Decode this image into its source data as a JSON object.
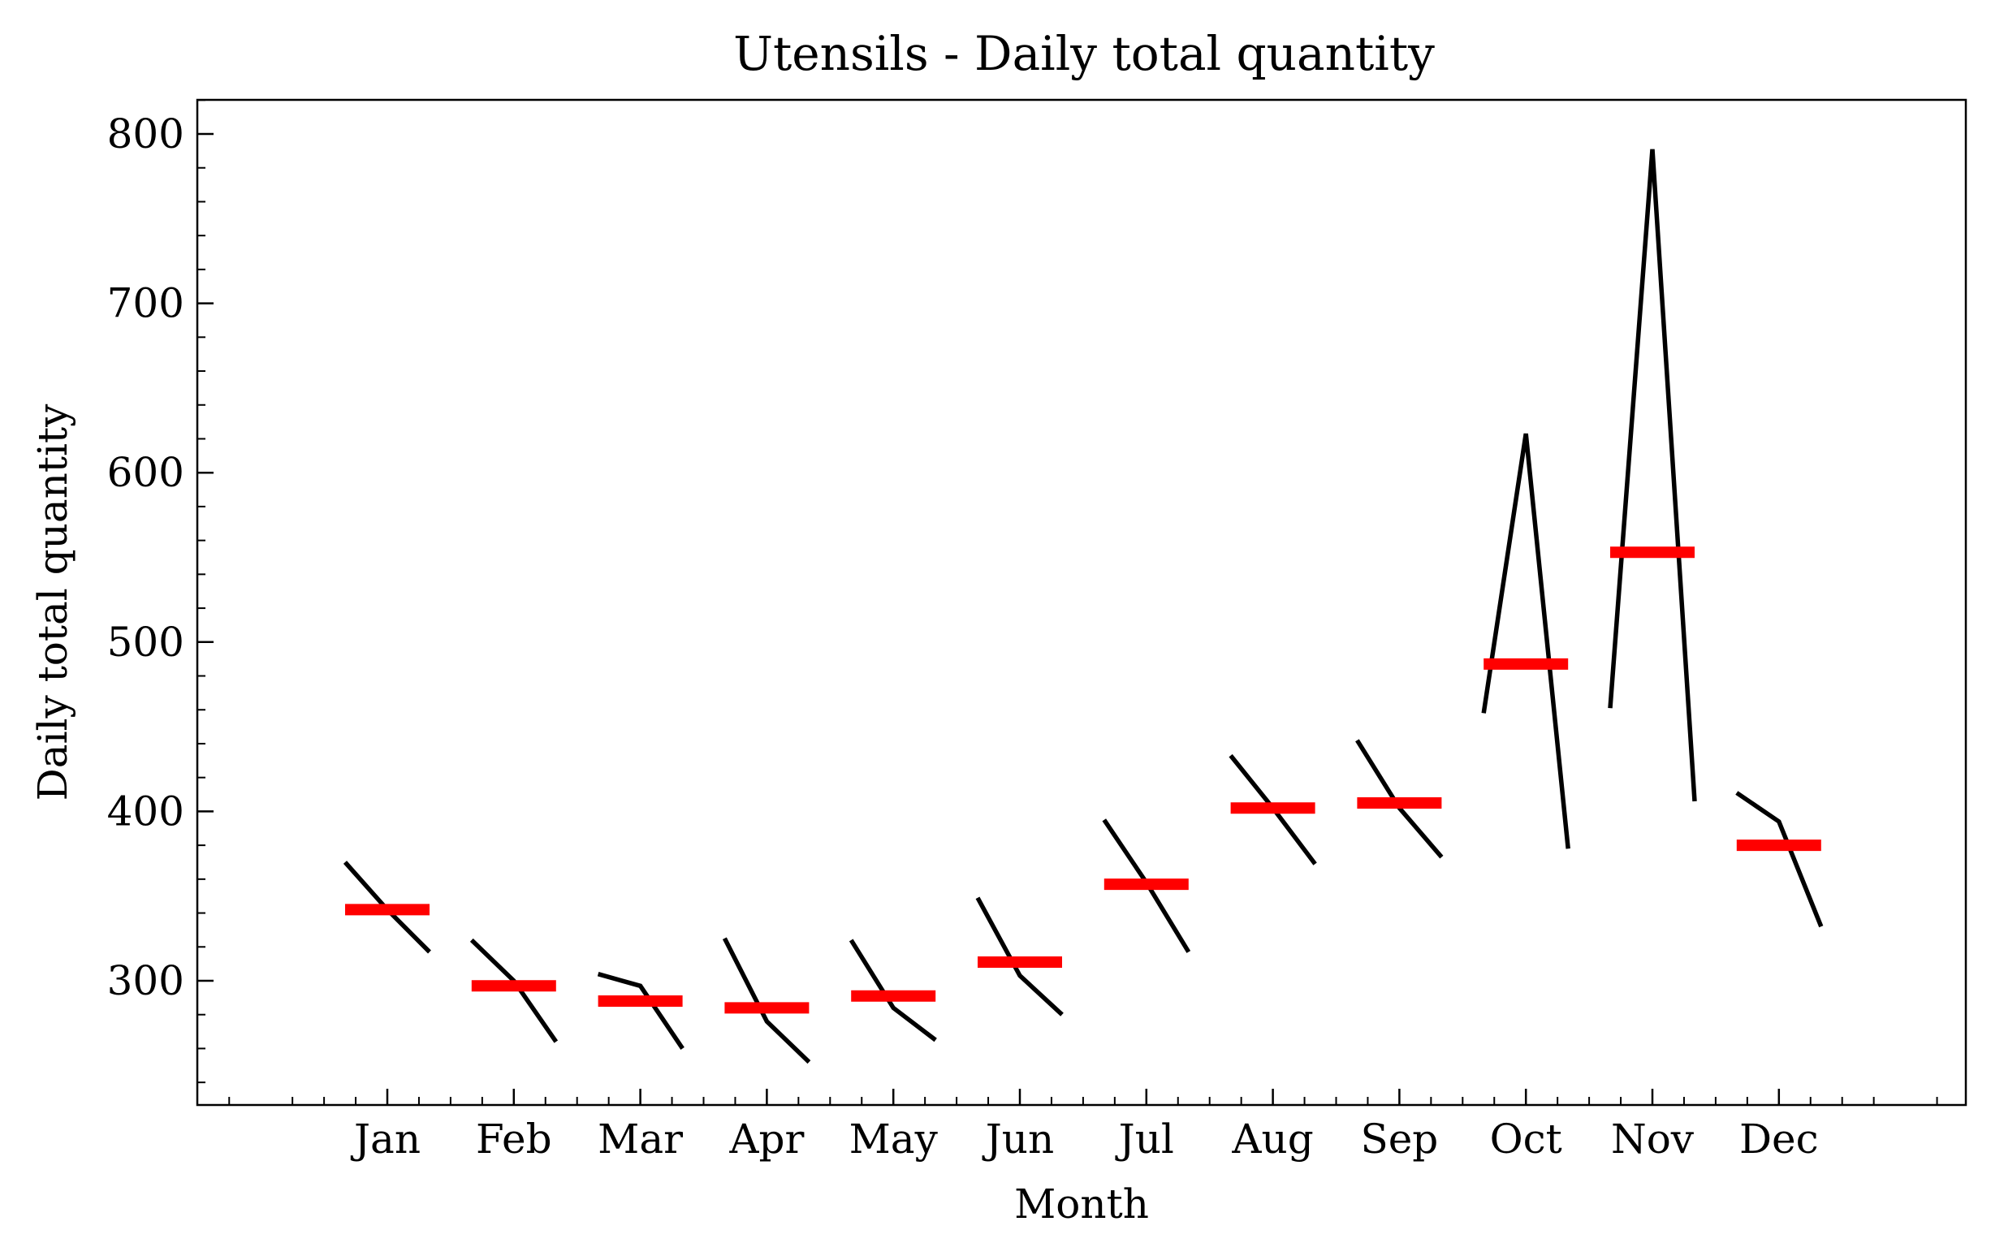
{
  "chart_data": {
    "type": "line",
    "title": "Utensils - Daily total quantity",
    "xlabel": "Month",
    "ylabel": "Daily total quantity",
    "ylim": [
      230,
      820
    ],
    "y_ticks": [
      300,
      400,
      500,
      600,
      700,
      800
    ],
    "x_categories": [
      "Jan",
      "Feb",
      "Mar",
      "Apr",
      "May",
      "Jun",
      "Jul",
      "Aug",
      "Sep",
      "Oct",
      "Nov",
      "Dec"
    ],
    "grid": false,
    "series": [
      {
        "kind": "subseries",
        "groups": [
          {
            "month": "Jan",
            "values": [
              370,
              342,
              317
            ],
            "mean": 342
          },
          {
            "month": "Feb",
            "values": [
              324,
              300,
              264
            ],
            "mean": 297
          },
          {
            "month": "Mar",
            "values": [
              304,
              297,
              260
            ],
            "mean": 288
          },
          {
            "month": "Apr",
            "values": [
              325,
              276,
              252
            ],
            "mean": 284
          },
          {
            "month": "May",
            "values": [
              324,
              284,
              265
            ],
            "mean": 291
          },
          {
            "month": "Jun",
            "values": [
              349,
              303,
              280
            ],
            "mean": 311
          },
          {
            "month": "Jul",
            "values": [
              395,
              358,
              317
            ],
            "mean": 357
          },
          {
            "month": "Aug",
            "values": [
              433,
              402,
              369
            ],
            "mean": 402
          },
          {
            "month": "Sep",
            "values": [
              442,
              402,
              373
            ],
            "mean": 405
          },
          {
            "month": "Oct",
            "values": [
              458,
              623,
              378
            ],
            "mean": 487
          },
          {
            "month": "Nov",
            "values": [
              461,
              791,
              406
            ],
            "mean": 553
          },
          {
            "month": "Dec",
            "values": [
              411,
              394,
              332
            ],
            "mean": 380
          }
        ]
      }
    ],
    "colors": {
      "line": "#000000",
      "mean": "#ff0000",
      "axis": "#000000"
    }
  }
}
